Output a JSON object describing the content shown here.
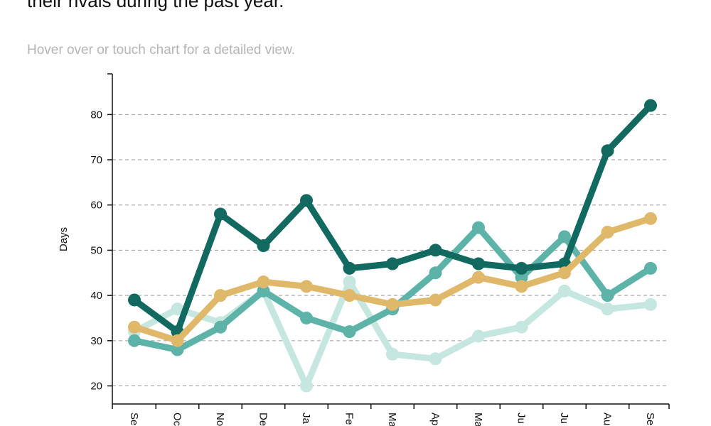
{
  "page": {
    "title": "their rivals during the past year.",
    "subtitle": "Hover over or touch chart for a detailed view."
  },
  "chart_data": {
    "type": "line",
    "title": "their rivals during the past year.",
    "subtitle": "Hover over or touch chart for a detailed view.",
    "xlabel": "",
    "ylabel": "Days",
    "categories": [
      "Se",
      "Oc",
      "No",
      "De",
      "Ja",
      "Fe",
      "Ma",
      "Ap",
      "Ma",
      "Ju",
      "Ju",
      "Au",
      "Se"
    ],
    "ylim": [
      16,
      89
    ],
    "yticks": [
      20,
      30,
      40,
      50,
      60,
      70,
      80
    ],
    "grid": true,
    "series": [
      {
        "color": "#12695f",
        "values": [
          39,
          32,
          58,
          51,
          61,
          46,
          47,
          50,
          47,
          46,
          47,
          72,
          82
        ]
      },
      {
        "color": "#5db3a7",
        "values": [
          30,
          28,
          33,
          41,
          35,
          32,
          37,
          45,
          55,
          44,
          53,
          40,
          46
        ]
      },
      {
        "color": "#c6e6e0",
        "values": [
          32,
          37,
          34,
          41,
          20,
          43,
          27,
          26,
          31,
          33,
          41,
          37,
          38
        ]
      },
      {
        "color": "#e0b86a",
        "values": [
          33,
          30,
          40,
          43,
          42,
          40,
          38,
          39,
          44,
          42,
          45,
          54,
          57
        ]
      }
    ]
  }
}
